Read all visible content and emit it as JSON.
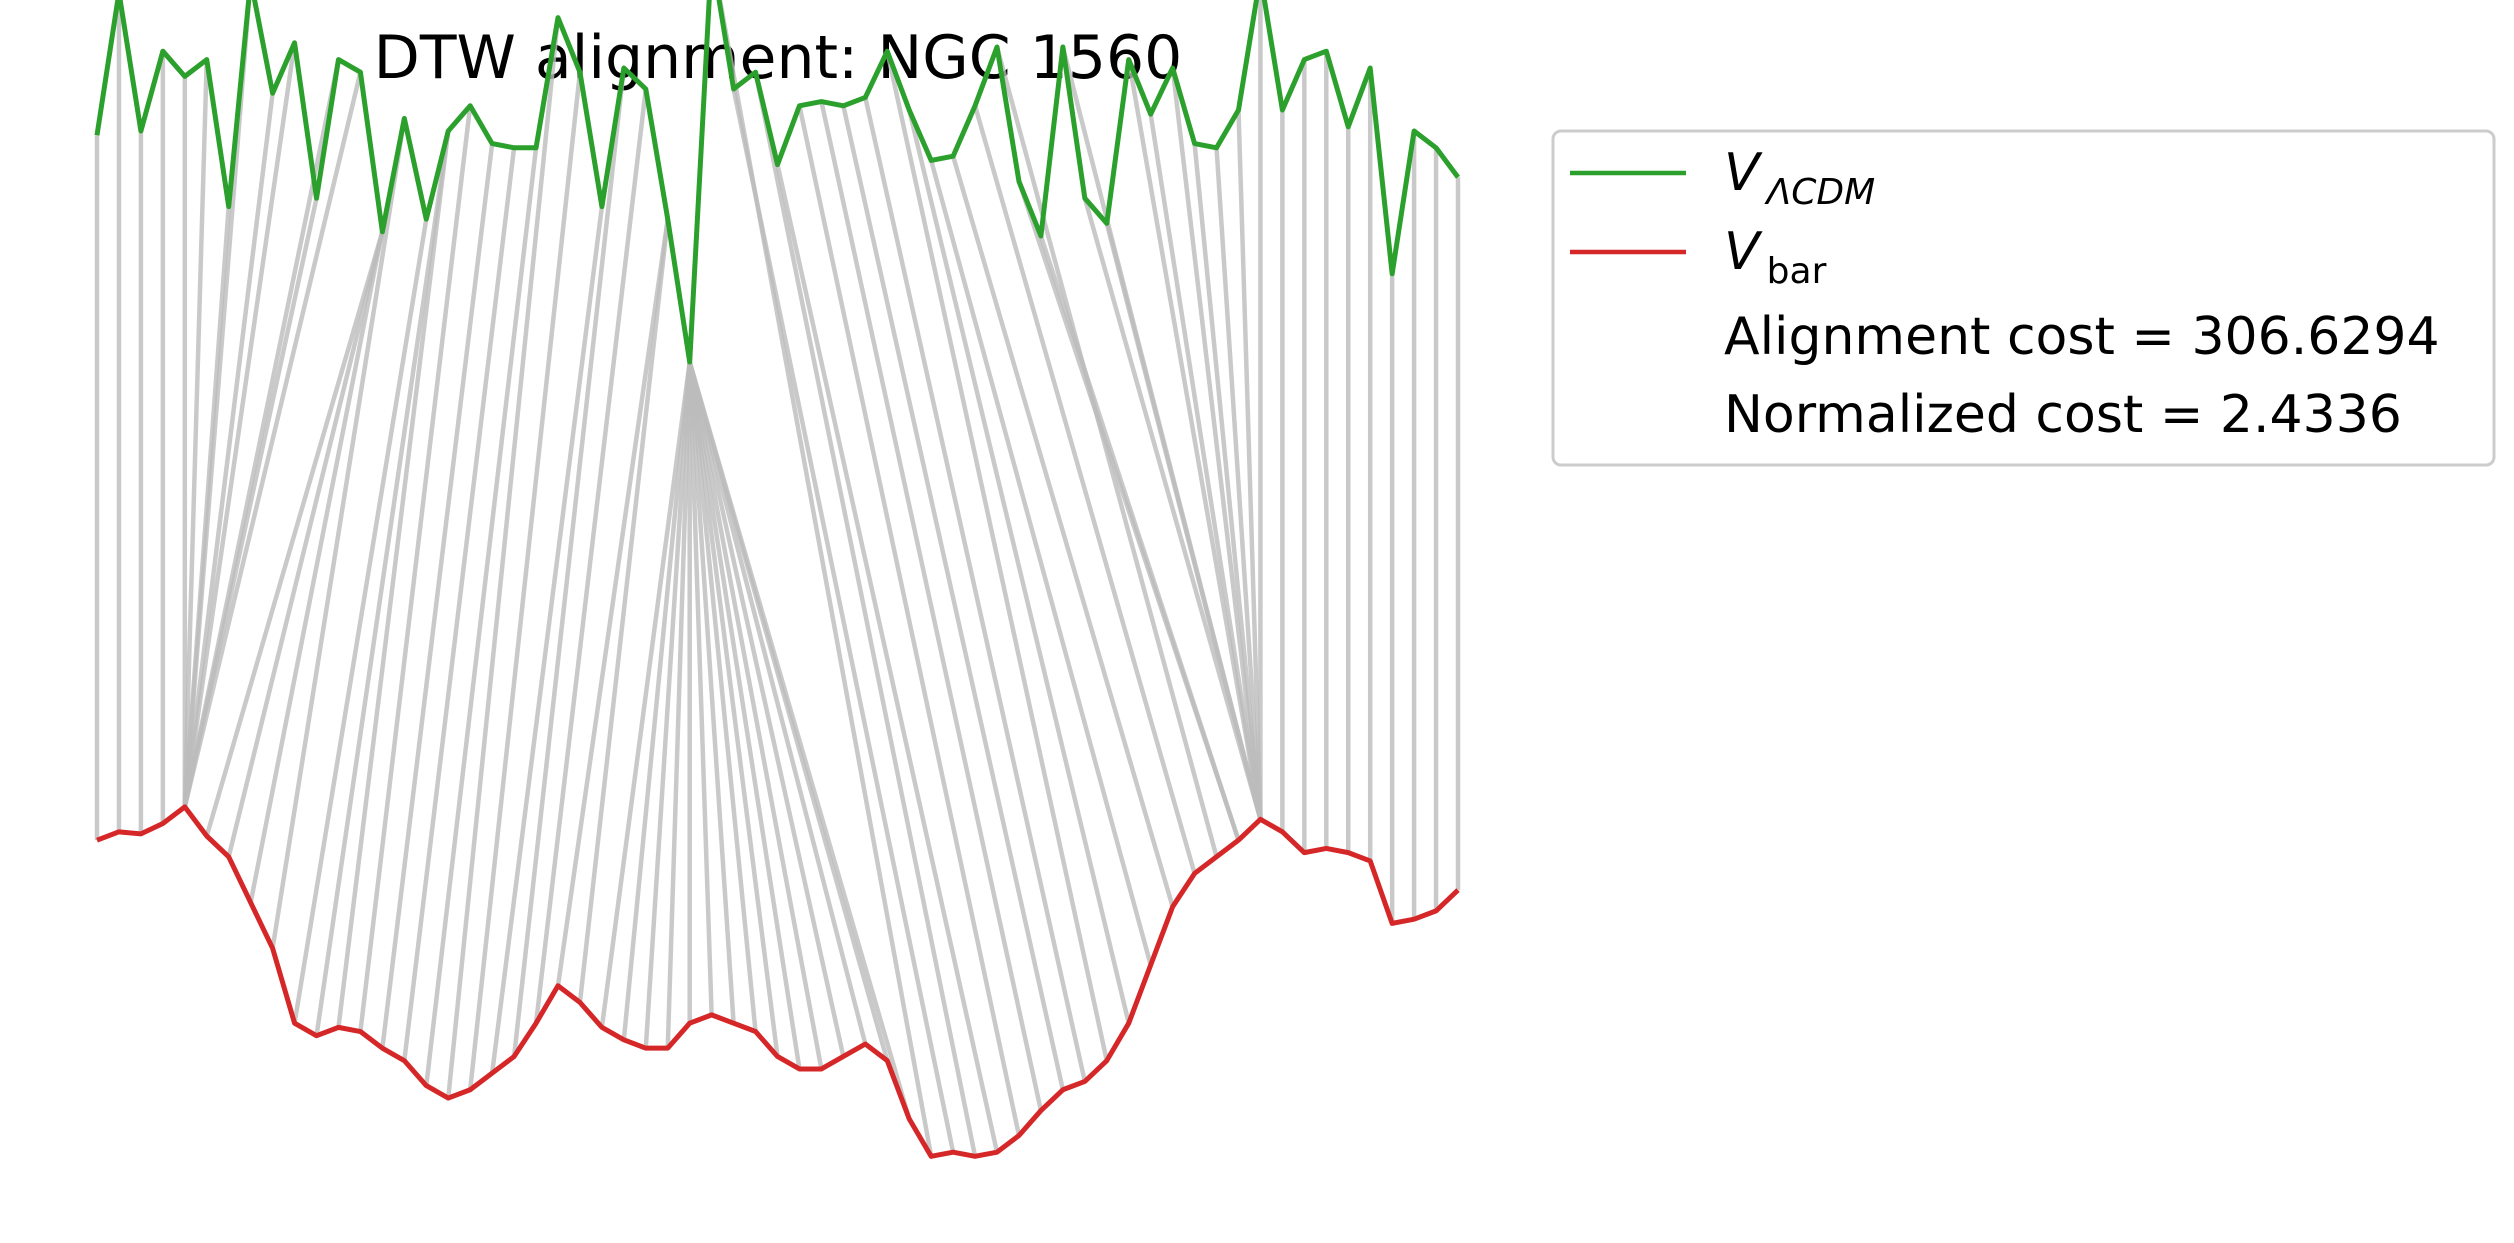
{
  "chart_data": {
    "type": "line",
    "title": "DTW alignment: NGC 1560",
    "axes_visible": false,
    "grid": false,
    "legend_position": "outside-top-right",
    "legend": {
      "series_1": {
        "symbol": "V",
        "subscript": "ΛCDM"
      },
      "series_2": {
        "symbol": "V",
        "subscript": "bar"
      },
      "alignment_cost": "Alignment cost = 306.6294",
      "normalized_cost": "Normalized cost = 2.4336"
    },
    "colors": {
      "v_lcdm": "#2ca02c",
      "v_bar": "#d62728",
      "connector": "#bbbbbb"
    },
    "series": [
      {
        "key": "v_lcdm",
        "values": [
          0.44,
          0.78,
          0.45,
          0.64,
          0.58,
          0.62,
          0.27,
          0.81,
          0.54,
          0.66,
          0.29,
          0.62,
          0.59,
          0.21,
          0.48,
          0.24,
          0.45,
          0.51,
          0.42,
          0.41,
          0.41,
          0.72,
          0.59,
          0.27,
          0.6,
          0.55,
          0.24,
          -0.1,
          0.87,
          0.55,
          0.59,
          0.37,
          0.51,
          0.52,
          0.51,
          0.53,
          0.64,
          0.5,
          0.38,
          0.39,
          0.51,
          0.65,
          0.33,
          0.2,
          0.65,
          0.29,
          0.23,
          0.62,
          0.49,
          0.6,
          0.42,
          0.41,
          0.5,
          0.82,
          0.5,
          0.62,
          0.64,
          0.46,
          0.6,
          0.11,
          0.45,
          0.41,
          0.34
        ]
      },
      {
        "key": "v_bar",
        "values": [
          0.24,
          0.26,
          0.255,
          0.28,
          0.32,
          0.25,
          0.2,
          0.09,
          -0.02,
          -0.2,
          -0.23,
          -0.21,
          -0.22,
          -0.26,
          -0.29,
          -0.35,
          -0.38,
          -0.36,
          -0.32,
          -0.28,
          -0.2,
          -0.11,
          -0.15,
          -0.21,
          -0.24,
          -0.26,
          -0.26,
          -0.2,
          -0.18,
          -0.2,
          -0.22,
          -0.28,
          -0.31,
          -0.31,
          -0.28,
          -0.25,
          -0.29,
          -0.43,
          -0.52,
          -0.51,
          -0.52,
          -0.51,
          -0.47,
          -0.41,
          -0.36,
          -0.34,
          -0.29,
          -0.2,
          -0.06,
          0.08,
          0.16,
          0.2,
          0.24,
          0.29,
          0.26,
          0.21,
          0.22,
          0.21,
          0.19,
          0.04,
          0.05,
          0.07,
          0.12
        ]
      }
    ],
    "alignment_pairs": [
      [
        0,
        0
      ],
      [
        1,
        1
      ],
      [
        2,
        2
      ],
      [
        3,
        3
      ],
      [
        4,
        4
      ],
      [
        5,
        4
      ],
      [
        6,
        4
      ],
      [
        7,
        4
      ],
      [
        8,
        4
      ],
      [
        9,
        4
      ],
      [
        10,
        4
      ],
      [
        11,
        4
      ],
      [
        12,
        4
      ],
      [
        13,
        5
      ],
      [
        13,
        6
      ],
      [
        14,
        7
      ],
      [
        14,
        8
      ],
      [
        15,
        9
      ],
      [
        16,
        10
      ],
      [
        16,
        11
      ],
      [
        17,
        12
      ],
      [
        18,
        13
      ],
      [
        19,
        14
      ],
      [
        20,
        15
      ],
      [
        21,
        16
      ],
      [
        22,
        17
      ],
      [
        23,
        18
      ],
      [
        24,
        19
      ],
      [
        25,
        20
      ],
      [
        26,
        21
      ],
      [
        26,
        22
      ],
      [
        27,
        23
      ],
      [
        27,
        24
      ],
      [
        27,
        25
      ],
      [
        27,
        26
      ],
      [
        27,
        27
      ],
      [
        27,
        28
      ],
      [
        27,
        29
      ],
      [
        27,
        30
      ],
      [
        27,
        31
      ],
      [
        27,
        32
      ],
      [
        27,
        33
      ],
      [
        27,
        34
      ],
      [
        27,
        35
      ],
      [
        27,
        36
      ],
      [
        27,
        37
      ],
      [
        28,
        38
      ],
      [
        29,
        39
      ],
      [
        30,
        40
      ],
      [
        31,
        41
      ],
      [
        32,
        42
      ],
      [
        33,
        43
      ],
      [
        34,
        44
      ],
      [
        35,
        45
      ],
      [
        36,
        46
      ],
      [
        37,
        47
      ],
      [
        38,
        48
      ],
      [
        39,
        49
      ],
      [
        40,
        50
      ],
      [
        41,
        51
      ],
      [
        42,
        52
      ],
      [
        43,
        52
      ],
      [
        44,
        53
      ],
      [
        45,
        53
      ],
      [
        46,
        53
      ],
      [
        47,
        53
      ],
      [
        48,
        53
      ],
      [
        49,
        53
      ],
      [
        50,
        53
      ],
      [
        51,
        53
      ],
      [
        52,
        53
      ],
      [
        53,
        53
      ],
      [
        54,
        54
      ],
      [
        55,
        55
      ],
      [
        56,
        56
      ],
      [
        57,
        57
      ],
      [
        58,
        58
      ],
      [
        59,
        59
      ],
      [
        60,
        60
      ],
      [
        61,
        61
      ],
      [
        62,
        62
      ]
    ]
  }
}
